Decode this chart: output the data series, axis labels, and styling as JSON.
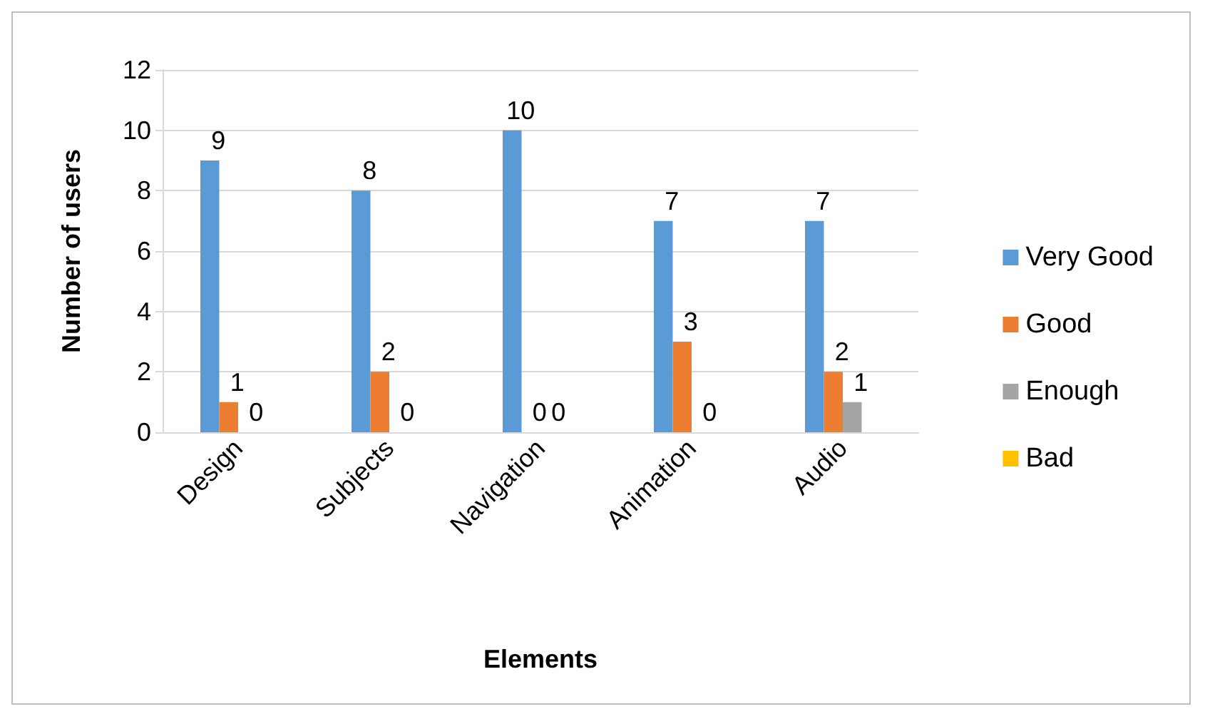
{
  "chart_data": {
    "type": "bar",
    "xlabel": "Elements",
    "ylabel": "Number of users",
    "categories": [
      "Design",
      "Subjects",
      "Navigation",
      "Animation",
      "Audio"
    ],
    "series": [
      {
        "name": "Very Good",
        "color": "#5b9bd5",
        "values": [
          9,
          8,
          10,
          7,
          7
        ]
      },
      {
        "name": "Good",
        "color": "#ed7d31",
        "values": [
          1,
          2,
          0,
          3,
          2
        ]
      },
      {
        "name": "Enough",
        "color": "#a5a5a5",
        "values": [
          0,
          0,
          0,
          0,
          1
        ]
      },
      {
        "name": "Bad",
        "color": "#ffc000",
        "values": [
          null,
          null,
          null,
          null,
          null
        ]
      }
    ],
    "ylim": [
      0,
      12
    ],
    "yticks": [
      0,
      2,
      4,
      6,
      8,
      10,
      12
    ],
    "grid": "y",
    "legend": "right",
    "data_labels": true
  }
}
